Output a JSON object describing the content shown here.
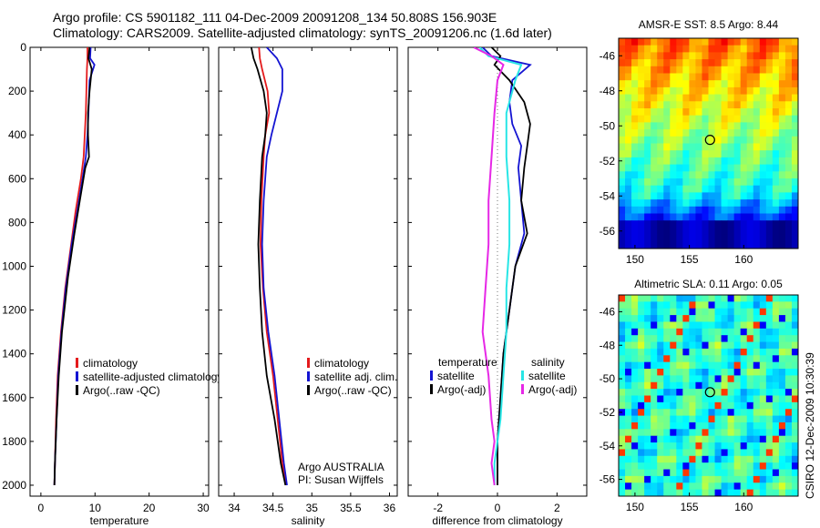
{
  "header": {
    "line1": "Argo profile: CS 5901182_111 04-Dec-2009 20091208_134 50.808S 156.903E",
    "line2": "Climatology: CARS2009. Satellite-adjusted climatology: synTS_20091206.nc (1.6d later)"
  },
  "credit": "CSIRO 12-Dec-2009 10:30:39",
  "colors": {
    "red": "#e41a1c",
    "blue": "#1414d2",
    "black": "#000000",
    "cyan": "#28e6e6",
    "magenta": "#e628e6"
  },
  "chart_data": [
    {
      "type": "line",
      "panel": "temperature",
      "xlabel": "temperature",
      "xlim": [
        -2,
        31
      ],
      "ylim": [
        2050,
        0
      ],
      "xticks": [
        0,
        10,
        20,
        30
      ],
      "yticks": [
        0,
        200,
        400,
        600,
        800,
        1000,
        1200,
        1400,
        1600,
        1800,
        2000
      ],
      "legend": {
        "placement": "lower-right"
      },
      "series": [
        {
          "name": "climatology",
          "color": "red",
          "x": [
            8.6,
            8.6,
            8.5,
            8.4,
            8.3,
            8.1,
            7.9,
            7.4,
            6.4,
            5.6,
            4.5,
            3.7,
            3.1,
            2.8,
            2.6,
            2.5
          ],
          "y": [
            0,
            50,
            100,
            200,
            300,
            400,
            500,
            600,
            750,
            900,
            1100,
            1300,
            1500,
            1700,
            1900,
            2000
          ]
        },
        {
          "name": "satellite-adjusted climatology",
          "color": "blue",
          "x": [
            9.2,
            9.1,
            9.9,
            9.0,
            8.8,
            8.6,
            8.3,
            7.7,
            6.7,
            5.7,
            4.6,
            3.8,
            3.2,
            2.9,
            2.6,
            2.5
          ],
          "y": [
            0,
            50,
            80,
            150,
            300,
            400,
            500,
            600,
            750,
            900,
            1100,
            1300,
            1500,
            1700,
            1900,
            2000
          ]
        },
        {
          "name": "Argo(..raw -QC)",
          "color": "black",
          "x": [
            9.0,
            8.8,
            9.4,
            9.0,
            8.7,
            8.7,
            8.9,
            8.2,
            7.2,
            6.2,
            5.0,
            3.9,
            3.3,
            2.9,
            2.6,
            2.5
          ],
          "y": [
            0,
            50,
            100,
            200,
            300,
            400,
            500,
            550,
            700,
            850,
            1050,
            1300,
            1500,
            1700,
            1900,
            2000
          ]
        }
      ]
    },
    {
      "type": "line",
      "panel": "salinity",
      "xlabel": "salinity",
      "xlim": [
        33.8,
        36.1
      ],
      "ylim": [
        2050,
        0
      ],
      "xticks": [
        34,
        34.5,
        35,
        35.5,
        36
      ],
      "legend": {
        "placement": "lower-right"
      },
      "annotations": [
        "Argo AUSTRALIA",
        "PI: Susan Wijffels"
      ],
      "series": [
        {
          "name": "climatology",
          "color": "red",
          "x": [
            34.32,
            34.33,
            34.36,
            34.43,
            34.45,
            34.4,
            34.38,
            34.35,
            34.34,
            34.37,
            34.42,
            34.5,
            34.56,
            34.62,
            34.67
          ],
          "y": [
            0,
            50,
            100,
            200,
            300,
            400,
            500,
            700,
            900,
            1100,
            1300,
            1500,
            1700,
            1900,
            2000
          ]
        },
        {
          "name": "satellite adj. clim.",
          "color": "blue",
          "x": [
            34.42,
            34.55,
            34.62,
            34.62,
            34.55,
            34.48,
            34.42,
            34.38,
            34.36,
            34.38,
            34.44,
            34.52,
            34.58,
            34.64,
            34.68
          ],
          "y": [
            0,
            50,
            100,
            200,
            300,
            400,
            500,
            700,
            900,
            1100,
            1300,
            1500,
            1700,
            1900,
            2000
          ]
        },
        {
          "name": "Argo(..raw -QC)",
          "color": "black",
          "x": [
            34.22,
            34.25,
            34.3,
            34.38,
            34.42,
            34.4,
            34.36,
            34.33,
            34.31,
            34.33,
            34.36,
            34.42,
            34.52,
            34.6,
            34.66
          ],
          "y": [
            0,
            50,
            100,
            200,
            300,
            400,
            500,
            700,
            900,
            1100,
            1300,
            1500,
            1700,
            1900,
            2000
          ]
        }
      ]
    },
    {
      "type": "line",
      "panel": "difference",
      "xlabel": "difference from climatology",
      "xlim": [
        -3,
        3
      ],
      "ylim": [
        2050,
        0
      ],
      "xticks": [
        -2,
        0,
        2
      ],
      "legend": {
        "placement": "lower-center",
        "columns": [
          "temperature",
          "salinity"
        ]
      },
      "series": [
        {
          "name": "satellite",
          "group": "temperature",
          "color": "blue",
          "x": [
            -0.5,
            -0.2,
            1.1,
            0.5,
            0.4,
            0.5,
            0.8,
            0.7,
            0.8,
            0.9,
            0.6,
            0.4,
            0.2,
            0.1,
            0.0,
            0.0
          ],
          "y": [
            0,
            40,
            80,
            150,
            250,
            350,
            450,
            550,
            700,
            850,
            1000,
            1200,
            1400,
            1600,
            1800,
            2000
          ]
        },
        {
          "name": "Argo(-adj)",
          "group": "temperature",
          "color": "black",
          "x": [
            -0.2,
            0.1,
            -0.1,
            0.4,
            0.9,
            1.1,
            1.0,
            0.9,
            0.8,
            1.0,
            0.6,
            0.4,
            0.2,
            0.1,
            0.0,
            0.0
          ],
          "y": [
            0,
            40,
            80,
            150,
            250,
            350,
            450,
            550,
            700,
            850,
            1000,
            1200,
            1400,
            1600,
            1800,
            2000
          ]
        },
        {
          "name": "satellite",
          "group": "salinity",
          "color": "cyan",
          "x": [
            -0.6,
            -0.3,
            0.8,
            0.6,
            0.3,
            0.3,
            0.4,
            0.4,
            0.3,
            0.3,
            0.2,
            0.1,
            0.0,
            -0.1,
            -0.1
          ],
          "y": [
            0,
            40,
            80,
            150,
            300,
            500,
            700,
            900,
            1100,
            1300,
            1500,
            1700,
            1800,
            1900,
            2000
          ]
        },
        {
          "name": "Argo(-adj)",
          "group": "salinity",
          "color": "magenta",
          "x": [
            -0.8,
            -0.2,
            0.2,
            0.0,
            -0.1,
            -0.2,
            -0.3,
            -0.3,
            -0.4,
            -0.5,
            -0.3,
            -0.2,
            -0.1,
            -0.2,
            -0.1
          ],
          "y": [
            0,
            40,
            80,
            150,
            300,
            500,
            700,
            900,
            1100,
            1300,
            1500,
            1700,
            1800,
            1900,
            2000
          ]
        }
      ]
    },
    {
      "type": "heatmap",
      "panel": "sst-map",
      "title": "AMSR-E SST: 8.5 Argo: 8.44",
      "xticks": [
        150,
        155,
        160
      ],
      "yticks": [
        -46,
        -48,
        -50,
        -52,
        -54,
        -56
      ],
      "xlim": [
        148.5,
        165.0
      ],
      "ylim": [
        -57.0,
        -45.0
      ],
      "marker": {
        "lon": 156.9,
        "lat": -50.8
      }
    },
    {
      "type": "heatmap",
      "panel": "sla-map",
      "title": "Altimetric SLA: 0.11 Argo: 0.05",
      "xticks": [
        150,
        155,
        160
      ],
      "yticks": [
        -46,
        -48,
        -50,
        -52,
        -54,
        -56
      ],
      "xlim": [
        148.5,
        165.0
      ],
      "ylim": [
        -57.0,
        -45.0
      ],
      "marker": {
        "lon": 156.9,
        "lat": -50.8
      }
    }
  ]
}
